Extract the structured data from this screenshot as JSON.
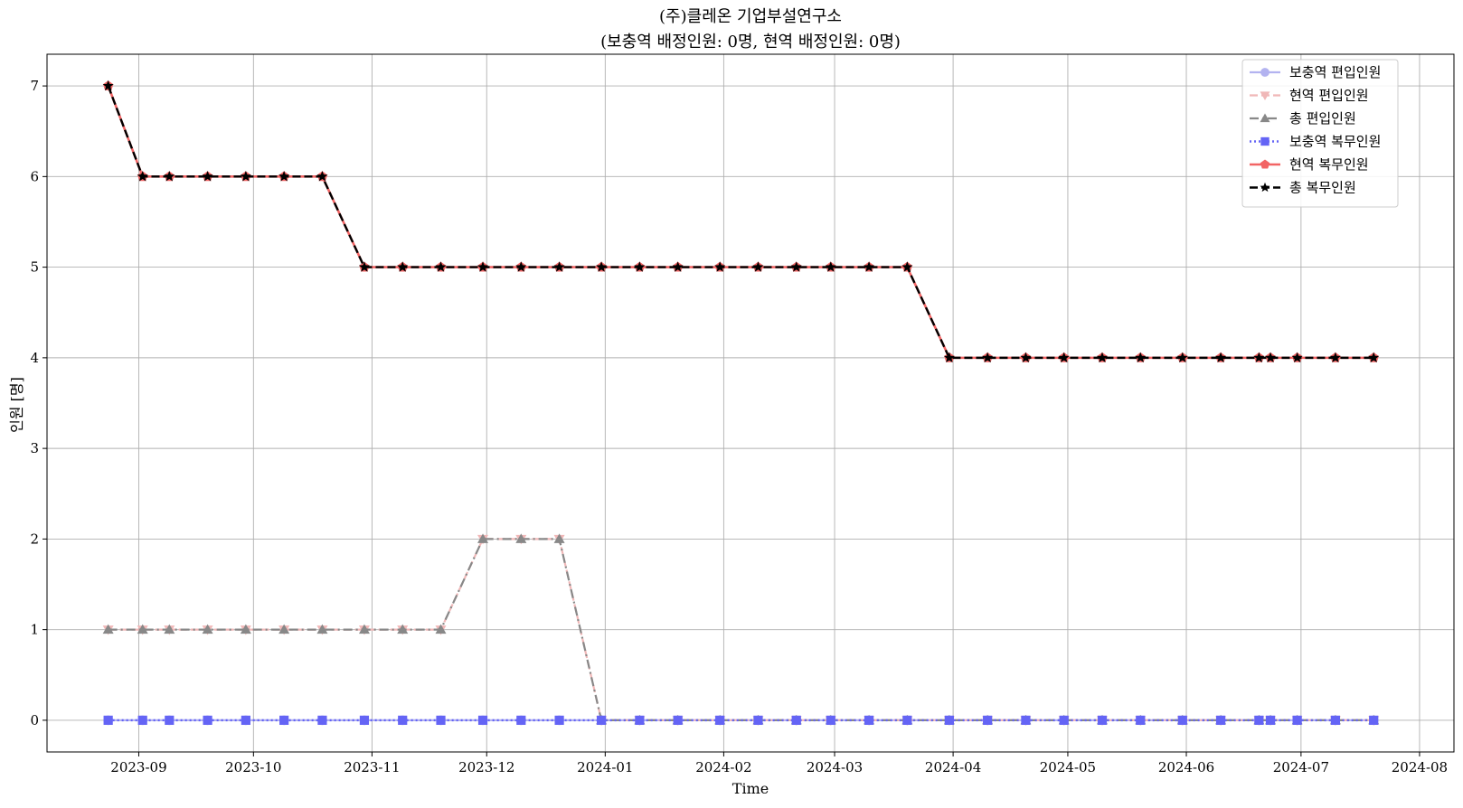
{
  "chart_data": {
    "type": "line",
    "title_line1": "(주)클레온 기업부설연구소",
    "title_line2": "(보충역 배정인원: 0명, 현역 배정인원: 0명)",
    "xlabel": "Time",
    "ylabel": "인원 [명]",
    "xlim": [
      "2023-08-08",
      "2024-08-10"
    ],
    "ylim": [
      -0.35,
      7.35
    ],
    "y_ticks": [
      0,
      1,
      2,
      3,
      4,
      5,
      6,
      7
    ],
    "x_ticks": [
      {
        "date": "2023-09-01",
        "label": "2023-09"
      },
      {
        "date": "2023-10-01",
        "label": "2023-10"
      },
      {
        "date": "2023-11-01",
        "label": "2023-11"
      },
      {
        "date": "2023-12-01",
        "label": "2023-12"
      },
      {
        "date": "2024-01-01",
        "label": "2024-01"
      },
      {
        "date": "2024-02-01",
        "label": "2024-02"
      },
      {
        "date": "2024-03-01",
        "label": "2024-03"
      },
      {
        "date": "2024-04-01",
        "label": "2024-04"
      },
      {
        "date": "2024-05-01",
        "label": "2024-05"
      },
      {
        "date": "2024-06-01",
        "label": "2024-06"
      },
      {
        "date": "2024-07-01",
        "label": "2024-07"
      },
      {
        "date": "2024-08-01",
        "label": "2024-08"
      }
    ],
    "grid": true,
    "legend_position": "top-right",
    "x": [
      "2023-08-24",
      "2023-09-02",
      "2023-09-09",
      "2023-09-19",
      "2023-09-29",
      "2023-10-09",
      "2023-10-19",
      "2023-10-30",
      "2023-11-09",
      "2023-11-19",
      "2023-11-30",
      "2023-12-10",
      "2023-12-20",
      "2023-12-31",
      "2024-01-10",
      "2024-01-20",
      "2024-01-31",
      "2024-02-10",
      "2024-02-20",
      "2024-02-29",
      "2024-03-10",
      "2024-03-20",
      "2024-03-31",
      "2024-04-10",
      "2024-04-20",
      "2024-04-30",
      "2024-05-10",
      "2024-05-20",
      "2024-05-31",
      "2024-06-10",
      "2024-06-20",
      "2024-06-23",
      "2024-06-30",
      "2024-07-10",
      "2024-07-20"
    ],
    "series": [
      {
        "name": "보충역 편입인원",
        "color": "#b3b3f0",
        "dash": "solid",
        "marker": "circle",
        "width": 2.2,
        "values": [
          0,
          0,
          0,
          0,
          0,
          0,
          0,
          0,
          0,
          0,
          0,
          0,
          0,
          0,
          0,
          0,
          0,
          0,
          0,
          0,
          0,
          0,
          0,
          0,
          0,
          0,
          0,
          0,
          0,
          0,
          0,
          0,
          0,
          0,
          0
        ]
      },
      {
        "name": "현역 편입인원",
        "color": "#f0b8b8",
        "dash": "dashed",
        "marker": "triangle-down",
        "width": 2.2,
        "values": [
          1,
          1,
          1,
          1,
          1,
          1,
          1,
          1,
          1,
          1,
          2,
          2,
          2,
          0,
          0,
          0,
          0,
          0,
          0,
          0,
          0,
          0,
          0,
          0,
          0,
          0,
          0,
          0,
          0,
          0,
          0,
          0,
          0,
          0,
          0
        ]
      },
      {
        "name": "총 편입인원",
        "color": "#888888",
        "dash": "dashdot",
        "marker": "triangle-up",
        "width": 2.2,
        "values": [
          1,
          1,
          1,
          1,
          1,
          1,
          1,
          1,
          1,
          1,
          2,
          2,
          2,
          0,
          0,
          0,
          0,
          0,
          0,
          0,
          0,
          0,
          0,
          0,
          0,
          0,
          0,
          0,
          0,
          0,
          0,
          0,
          0,
          0,
          0
        ]
      },
      {
        "name": "보충역 복무인원",
        "color": "#6464f5",
        "dash": "dotted",
        "marker": "square",
        "width": 2.4,
        "values": [
          0,
          0,
          0,
          0,
          0,
          0,
          0,
          0,
          0,
          0,
          0,
          0,
          0,
          0,
          0,
          0,
          0,
          0,
          0,
          0,
          0,
          0,
          0,
          0,
          0,
          0,
          0,
          0,
          0,
          0,
          0,
          0,
          0,
          0,
          0
        ]
      },
      {
        "name": "현역 복무인원",
        "color": "#f26464",
        "dash": "solid",
        "marker": "pentagon",
        "width": 2.6,
        "values": [
          7,
          6,
          6,
          6,
          6,
          6,
          6,
          5,
          5,
          5,
          5,
          5,
          5,
          5,
          5,
          5,
          5,
          5,
          5,
          5,
          5,
          5,
          4,
          4,
          4,
          4,
          4,
          4,
          4,
          4,
          4,
          4,
          4,
          4,
          4
        ]
      },
      {
        "name": "총 복무인원",
        "color": "#000000",
        "dash": "dashed",
        "marker": "star",
        "width": 2.4,
        "values": [
          7,
          6,
          6,
          6,
          6,
          6,
          6,
          5,
          5,
          5,
          5,
          5,
          5,
          5,
          5,
          5,
          5,
          5,
          5,
          5,
          5,
          5,
          4,
          4,
          4,
          4,
          4,
          4,
          4,
          4,
          4,
          4,
          4,
          4,
          4
        ]
      }
    ]
  }
}
